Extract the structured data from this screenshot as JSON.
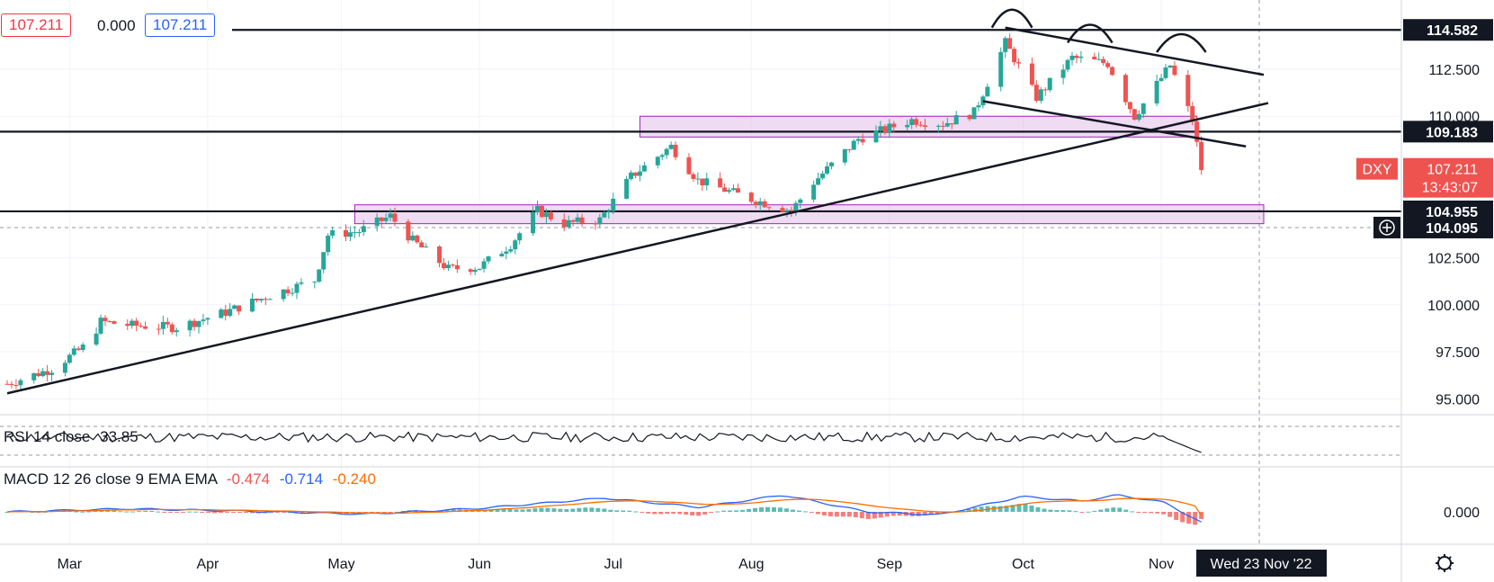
{
  "header": {
    "open_value": "107.211",
    "change_value": "0.000",
    "close_value": "107.211"
  },
  "symbol": "DXY",
  "last_price": "107.211",
  "countdown": "13:43:07",
  "crosshair_price": "104.095",
  "crosshair_date": "Wed 23 Nov '22",
  "rsi": {
    "label": "RSI 14 close",
    "value": "33.85"
  },
  "macd": {
    "label": "MACD 12 26 close 9 EMA EMA",
    "hist": "-0.474",
    "macd": "-0.714",
    "signal": "-0.240",
    "zero_label": "0.000"
  },
  "colors": {
    "up": "#26a69a",
    "down": "#ef5350",
    "zone": "#e1bee7",
    "zone_border": "#9c27b0",
    "macd_line": "#2962ff",
    "signal_line": "#ff6d00",
    "price_tag": "#ef5350",
    "level_tag": "#131722"
  },
  "chart_data": {
    "type": "candlestick",
    "title": "",
    "y_axis_ticks": [
      "114.582",
      "112.500",
      "110.000",
      "109.183",
      "104.955",
      "104.095",
      "102.500",
      "100.000",
      "97.500",
      "95.000"
    ],
    "ylim": [
      94.5,
      115.5
    ],
    "x_axis_ticks": [
      "Mar",
      "Apr",
      "May",
      "Jun",
      "Jul",
      "Aug",
      "Sep",
      "Oct",
      "Nov"
    ],
    "horizontal_levels": [
      114.582,
      109.183,
      104.955
    ],
    "resistance_zones": [
      [
        108.9,
        110.0
      ],
      [
        104.3,
        105.3
      ]
    ],
    "trendline": {
      "from": [
        "2022-02-15",
        95.3
      ],
      "to": [
        "2022-11-25",
        110.7
      ]
    },
    "close_series": [
      [
        "2022-02-15",
        95.8
      ],
      [
        "2022-02-25",
        96.6
      ],
      [
        "2022-03-05",
        97.9
      ],
      [
        "2022-03-08",
        99.1
      ],
      [
        "2022-03-15",
        98.9
      ],
      [
        "2022-03-25",
        98.8
      ],
      [
        "2022-04-05",
        99.6
      ],
      [
        "2022-04-15",
        100.5
      ],
      [
        "2022-04-25",
        101.3
      ],
      [
        "2022-04-28",
        103.7
      ],
      [
        "2022-05-05",
        103.9
      ],
      [
        "2022-05-12",
        104.7
      ],
      [
        "2022-05-17",
        103.4
      ],
      [
        "2022-05-25",
        101.9
      ],
      [
        "2022-06-01",
        102.0
      ],
      [
        "2022-06-08",
        103.2
      ],
      [
        "2022-06-14",
        105.0
      ],
      [
        "2022-06-20",
        104.3
      ],
      [
        "2022-06-28",
        104.5
      ],
      [
        "2022-07-05",
        106.8
      ],
      [
        "2022-07-14",
        108.4
      ],
      [
        "2022-07-20",
        106.6
      ],
      [
        "2022-08-01",
        105.6
      ],
      [
        "2022-08-10",
        105.0
      ],
      [
        "2022-08-15",
        106.5
      ],
      [
        "2022-08-25",
        108.8
      ],
      [
        "2022-09-06",
        109.8
      ],
      [
        "2022-09-13",
        109.6
      ],
      [
        "2022-09-20",
        110.2
      ],
      [
        "2022-09-27",
        113.9
      ],
      [
        "2022-10-04",
        111.0
      ],
      [
        "2022-10-12",
        113.1
      ],
      [
        "2022-10-20",
        112.8
      ],
      [
        "2022-10-26",
        110.0
      ],
      [
        "2022-11-03",
        112.7
      ],
      [
        "2022-11-08",
        109.8
      ],
      [
        "2022-11-10",
        107.2
      ]
    ],
    "rsi_value": 33.85,
    "macd_values": {
      "histogram": -0.474,
      "macd": -0.714,
      "signal": -0.24
    }
  }
}
